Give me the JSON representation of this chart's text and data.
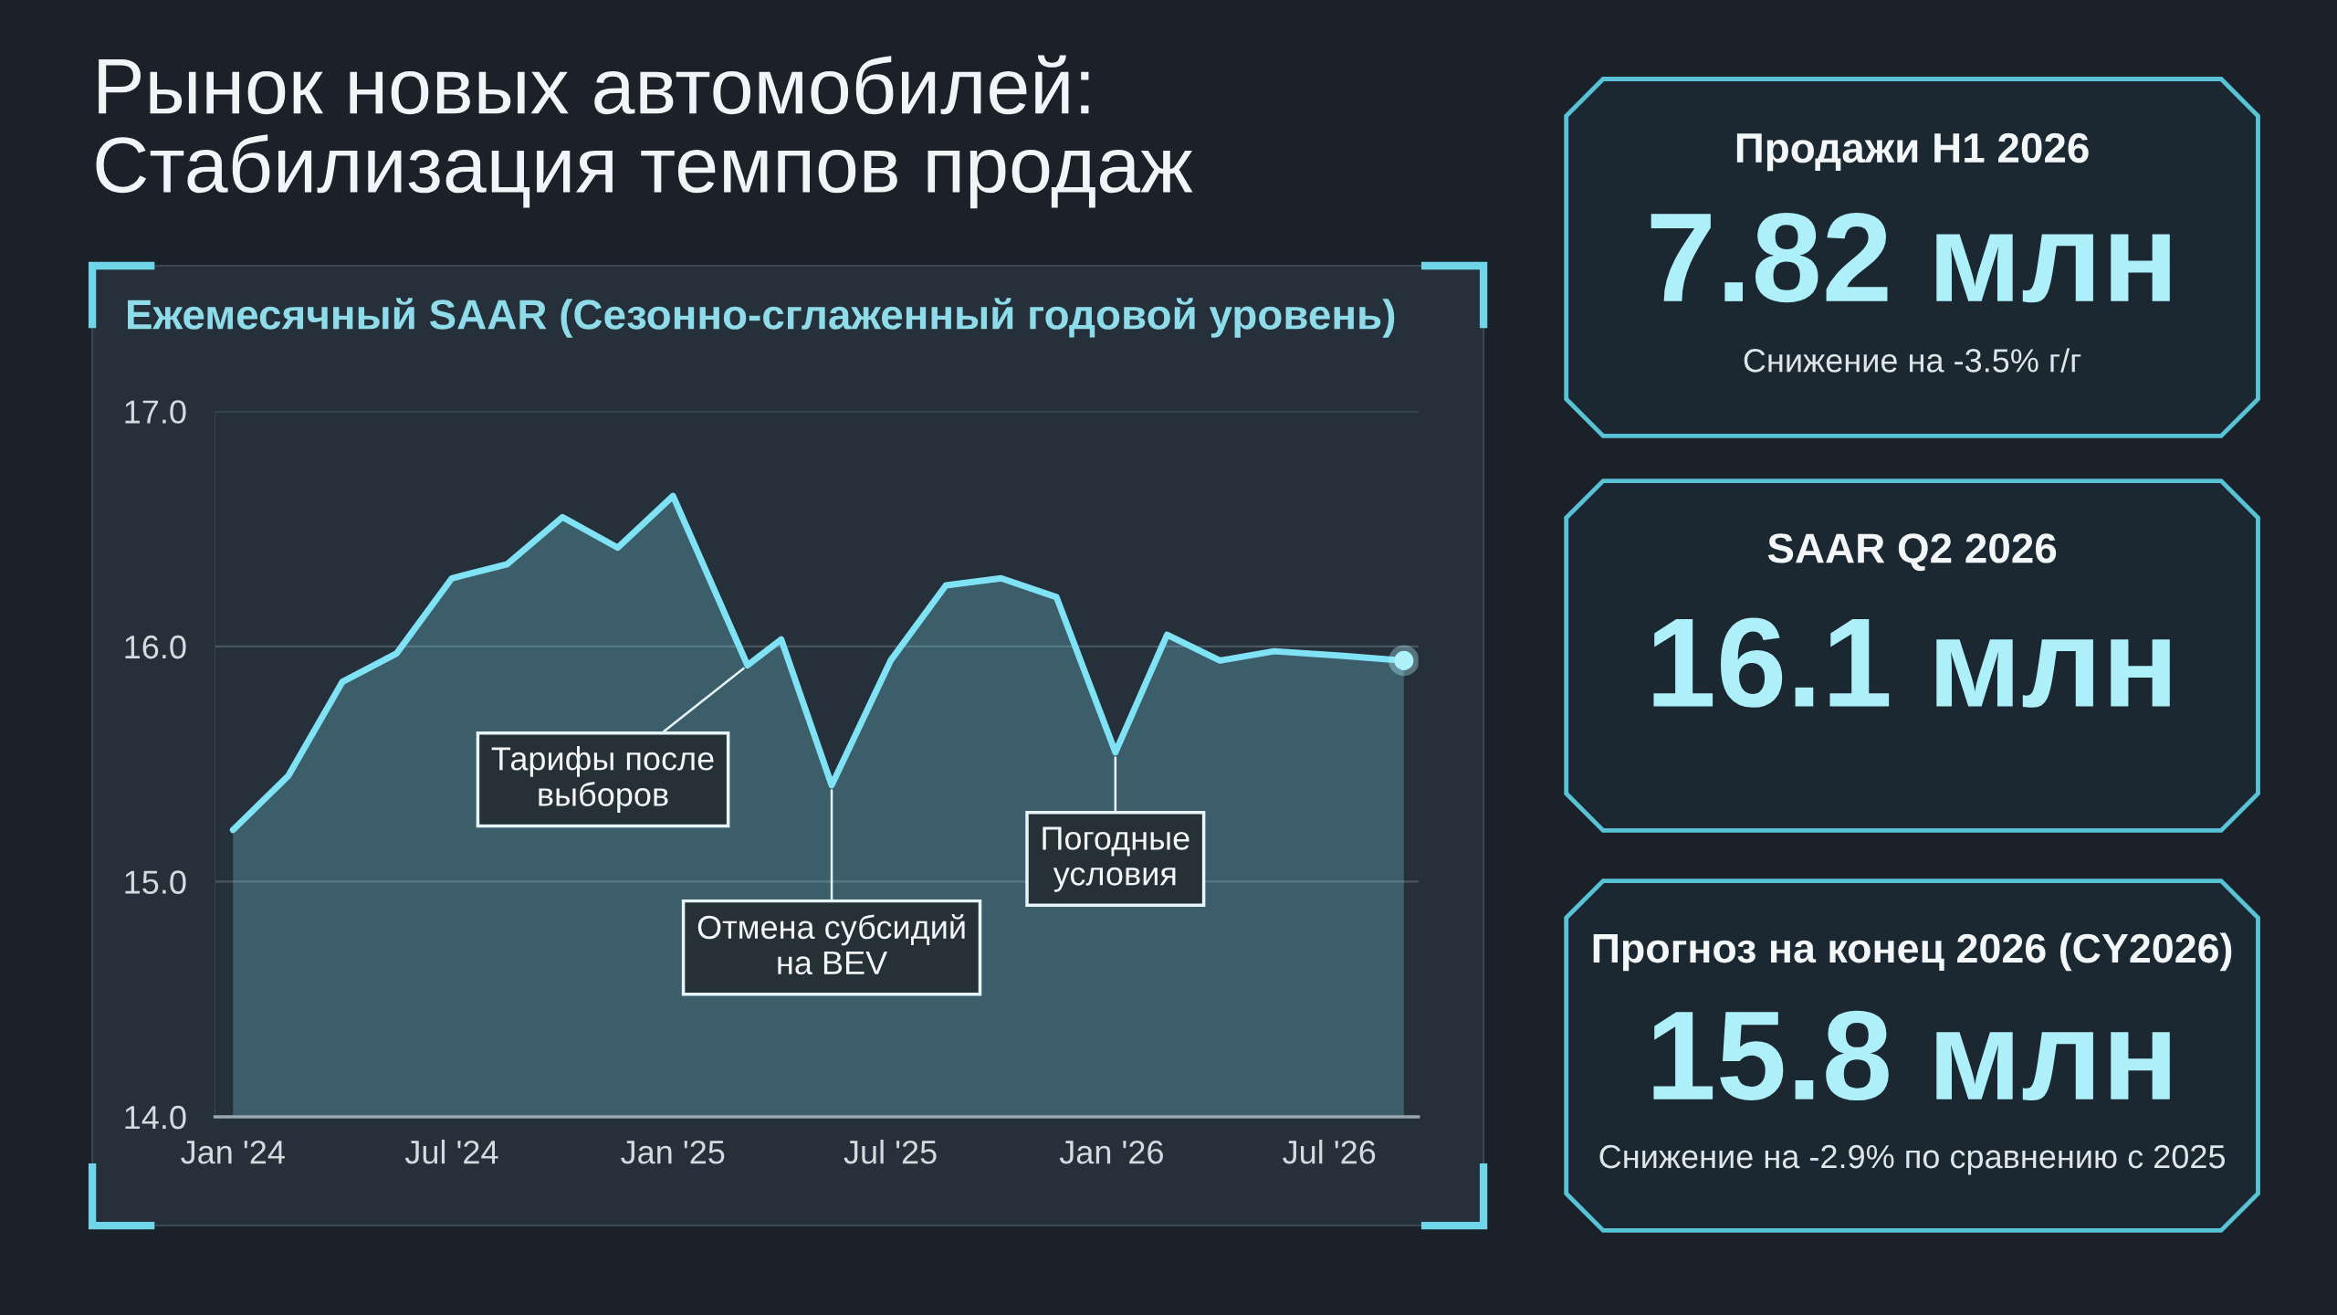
{
  "chart_data": [
    {
      "type": "area",
      "title": "Рынок новых автомобилей:\nСтабилизация темпов продаж",
      "subtitle": "Ежемесячный SAAR (Сезонно-сглаженный годовой уровень)",
      "series": [
        {
          "type": "area",
          "color": "#7fe3f5",
          "x": [
            "2024-01-01",
            "2024-02-16",
            "2024-04-01",
            "2024-05-16",
            "2024-07-01",
            "2024-08-16",
            "2024-10-01",
            "2024-11-16",
            "2025-01-01",
            "2025-03-04",
            "2025-04-01",
            "2025-05-13",
            "2025-07-01",
            "2025-08-16",
            "2025-10-01",
            "2025-11-16",
            "2026-01-04",
            "2026-02-16",
            "2026-04-01",
            "2026-05-16",
            "2026-07-13",
            "2026-09-01"
          ],
          "values": [
            15.22,
            15.45,
            15.85,
            15.97,
            16.29,
            16.35,
            16.55,
            16.42,
            16.64,
            15.92,
            16.03,
            15.41,
            15.94,
            16.26,
            16.29,
            16.21,
            15.55,
            16.05,
            15.94,
            15.98,
            15.96,
            15.94
          ]
        },
        {
          "type": "scatter",
          "color": "#aef3fc",
          "marker": "circle",
          "x": [
            "2026-09-01"
          ],
          "values": [
            15.94
          ]
        }
      ],
      "xlim": [
        "2023-12-17",
        "2026-09-13"
      ],
      "xticks": [
        {
          "value": "2024-01-01",
          "label": "Jan '24"
        },
        {
          "value": "2024-07-01",
          "label": "Jul '24"
        },
        {
          "value": "2025-01-01",
          "label": "Jan '25"
        },
        {
          "value": "2025-07-01",
          "label": "Jul '25"
        },
        {
          "value": "2026-01-01",
          "label": "Jan '26"
        },
        {
          "value": "2026-07-01",
          "label": "Jul '26"
        }
      ],
      "ylim": [
        14,
        17
      ],
      "yticks": [
        {
          "value": 14,
          "label": "14.0"
        },
        {
          "value": 15,
          "label": "15.0"
        },
        {
          "value": 16,
          "label": "16.0"
        },
        {
          "value": 17,
          "label": "17.0"
        }
      ],
      "grid": "y",
      "annotations": [
        {
          "text": "Тарифы после\nвыборов",
          "x": "2025-03-04",
          "y": 15.92
        },
        {
          "text": "Отмена субсидий\nна BEV",
          "x": "2025-05-13",
          "y": 15.41
        },
        {
          "text": "Погодные\nусловия",
          "x": "2026-01-04",
          "y": 15.55
        }
      ]
    },
    {
      "type": "other",
      "title": "Продажи H1 2026",
      "annotations": [
        "7.82 млн",
        "Снижение на -3.5% г/г"
      ]
    },
    {
      "type": "other",
      "title": "SAAR Q2 2026",
      "annotations": [
        "16.1 млн"
      ]
    },
    {
      "type": "other",
      "title": "Прогноз на конец 2026 (CY2026)",
      "annotations": [
        "15.8 млн",
        "Снижение на -2.9% по сравнению с 2025"
      ]
    }
  ]
}
